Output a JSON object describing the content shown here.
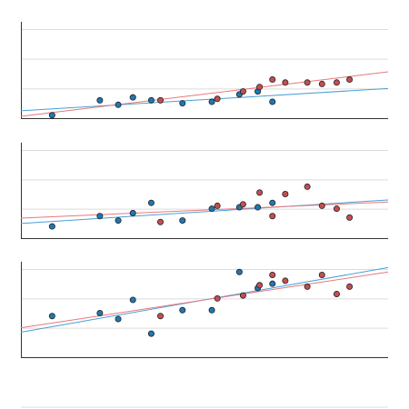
{
  "chart_data": [
    {
      "type": "scatter",
      "title": "",
      "xlabel": "",
      "ylabel": "",
      "xlim": [
        0,
        10
      ],
      "ylim": [
        0,
        3
      ],
      "grid": true,
      "series": [
        {
          "color": "#1f77b4",
          "x": [
            0.85,
            2.15,
            2.65,
            3.05,
            3.55,
            4.4,
            5.2,
            5.95,
            6.45,
            6.85
          ],
          "y": [
            0.1,
            0.6,
            0.45,
            0.7,
            0.6,
            0.5,
            0.55,
            0.8,
            0.9,
            0.55
          ],
          "fit": {
            "intercept": 0.25,
            "slope": 0.075,
            "color": "#4a9fd8"
          }
        },
        {
          "color": "#c44e52",
          "x": [
            3.8,
            5.35,
            6.05,
            6.5,
            6.85,
            7.2,
            7.8,
            8.2,
            8.6,
            8.95
          ],
          "y": [
            0.6,
            0.65,
            0.9,
            1.05,
            1.3,
            1.2,
            1.2,
            1.15,
            1.2,
            1.3
          ],
          "fit": {
            "intercept": 0.06,
            "slope": 0.15,
            "color": "#e8787b"
          }
        }
      ]
    },
    {
      "type": "scatter",
      "title": "",
      "xlabel": "",
      "ylabel": "",
      "xlim": [
        0,
        10
      ],
      "ylim": [
        0,
        3
      ],
      "grid": true,
      "series": [
        {
          "color": "#1f77b4",
          "x": [
            0.85,
            2.15,
            2.65,
            3.05,
            3.55,
            4.4,
            5.2,
            5.95,
            6.45,
            6.85
          ],
          "y": [
            0.4,
            0.75,
            0.6,
            0.85,
            1.2,
            0.6,
            1.0,
            1.05,
            1.05,
            1.2
          ],
          "fit": {
            "intercept": 0.5,
            "slope": 0.08,
            "color": "#4a9fd8"
          }
        },
        {
          "color": "#c44e52",
          "x": [
            3.8,
            5.35,
            6.05,
            6.5,
            6.85,
            7.2,
            7.8,
            8.2,
            8.6,
            8.95
          ],
          "y": [
            0.55,
            1.1,
            1.15,
            1.55,
            0.75,
            1.5,
            1.75,
            1.1,
            1.0,
            0.7
          ],
          "fit": {
            "intercept": 0.68,
            "slope": 0.055,
            "color": "#e8787b"
          }
        }
      ]
    },
    {
      "type": "scatter",
      "title": "",
      "xlabel": "",
      "ylabel": "",
      "xlim": [
        0,
        10
      ],
      "ylim": [
        0,
        3
      ],
      "grid": true,
      "series": [
        {
          "color": "#1f77b4",
          "x": [
            0.85,
            2.15,
            2.65,
            3.05,
            3.55,
            4.4,
            5.2,
            5.95,
            6.45,
            6.85
          ],
          "y": [
            1.4,
            1.5,
            1.3,
            1.95,
            0.8,
            1.6,
            1.6,
            2.9,
            2.35,
            2.5
          ],
          "fit": {
            "intercept": 0.85,
            "slope": 0.22,
            "color": "#4a9fd8"
          }
        },
        {
          "color": "#c44e52",
          "x": [
            3.8,
            5.35,
            6.05,
            6.5,
            6.85,
            7.2,
            7.8,
            8.2,
            8.6,
            8.95
          ],
          "y": [
            1.4,
            2.0,
            2.1,
            2.45,
            2.8,
            2.6,
            2.4,
            2.8,
            2.15,
            2.4
          ],
          "fit": {
            "intercept": 1.0,
            "slope": 0.19,
            "color": "#e8787b"
          }
        }
      ]
    },
    {
      "type": "scatter",
      "title": "",
      "xlabel": "",
      "ylabel": "",
      "xlim": [
        0,
        10
      ],
      "ylim": [
        0,
        3
      ],
      "grid": false,
      "series": []
    }
  ]
}
